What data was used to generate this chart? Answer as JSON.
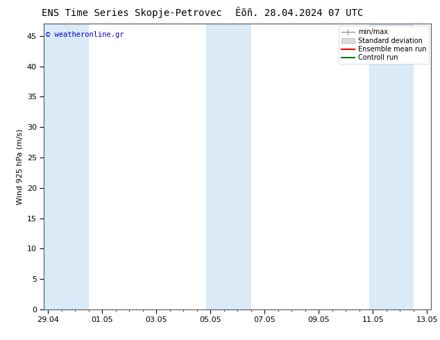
{
  "title_left": "ENS Time Series Skopje-Petrovec",
  "title_right": "Êõñ. 28.04.2024 07 UTC",
  "ylabel": "Wind 925 hPa (m/s)",
  "watermark": "© weatheronline.gr",
  "watermark_color": "#0000cc",
  "bg_color": "#ffffff",
  "plot_bg_color": "#ffffff",
  "shaded_band_color": "#daeaf7",
  "xtick_labels": [
    "29.04",
    "01.05",
    "03.05",
    "05.05",
    "07.05",
    "09.05",
    "11.05",
    "13.05"
  ],
  "ylim": [
    0,
    47
  ],
  "yticks": [
    0,
    5,
    10,
    15,
    20,
    25,
    30,
    35,
    40,
    45
  ],
  "legend_labels": [
    "min/max",
    "Standard deviation",
    "Ensemble mean run",
    "Controll run"
  ],
  "legend_colors": [
    "#aaaaaa",
    "#cccccc",
    "#ff0000",
    "#007700"
  ],
  "font_size": 8,
  "title_font_size": 10
}
